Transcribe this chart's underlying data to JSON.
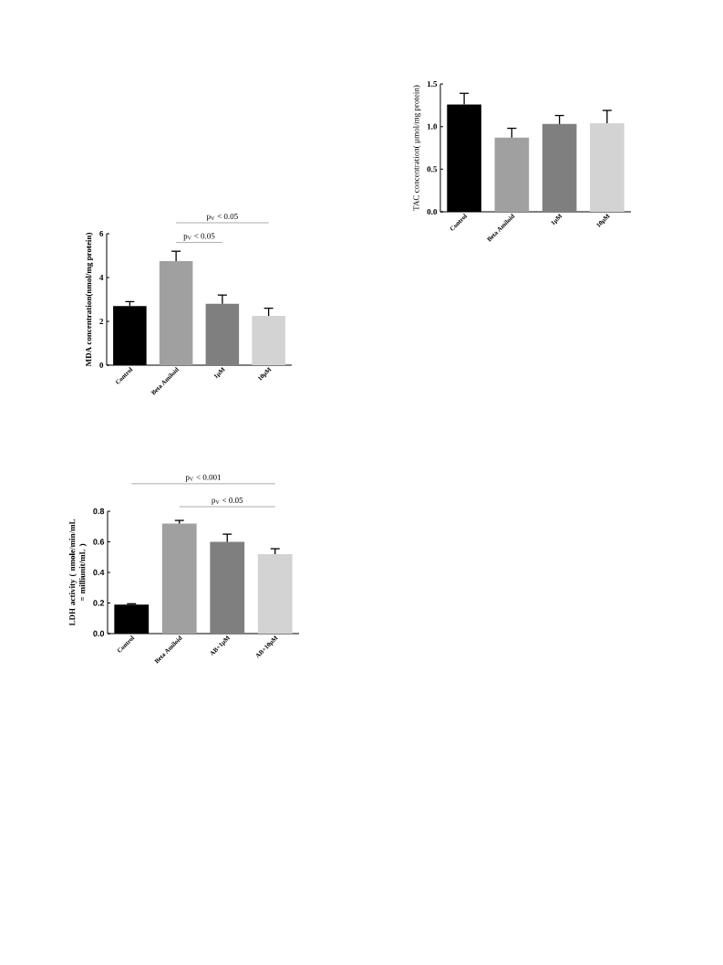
{
  "chart_data": [
    {
      "type": "bar",
      "categories": [
        "Control",
        "Beta Amiloid",
        "1µM",
        "10µM"
      ],
      "values": [
        1.26,
        0.87,
        1.03,
        1.04
      ],
      "errors": [
        0.13,
        0.11,
        0.1,
        0.15
      ],
      "colors": [
        "#000000",
        "#a0a0a0",
        "#7f7f7f",
        "#d3d3d3"
      ],
      "ylabel": "TAC concentration( µmol/mg  protein)",
      "ylim": [
        0,
        1.5
      ],
      "yticks": [
        {
          "value": 0,
          "label": "0.0"
        },
        {
          "value": 0.5,
          "label": "0.5"
        },
        {
          "value": 1,
          "label": "1.0"
        },
        {
          "value": 1.5,
          "label": "1.5"
        }
      ]
    },
    {
      "type": "bar",
      "categories": [
        "Control",
        "Beta Amiloid",
        "1µM",
        "10µM"
      ],
      "values": [
        2.7,
        4.75,
        2.8,
        2.25
      ],
      "errors": [
        0.2,
        0.45,
        0.4,
        0.35
      ],
      "colors": [
        "#000000",
        "#a0a0a0",
        "#7f7f7f",
        "#d3d3d3"
      ],
      "ylabel": "MDA concentration(nmol/mg protein)",
      "ylim": [
        0,
        6
      ],
      "yticks": [
        0,
        2,
        4,
        6
      ],
      "annotations": [
        "p$_{V}$ < 0.05",
        "p$_{V}$ < 0.05"
      ]
    },
    {
      "type": "bar",
      "categories": [
        "Control",
        "Beta Amiloid",
        "AB+1µM",
        "AB+10µM"
      ],
      "values": [
        0.19,
        0.72,
        0.6,
        0.52
      ],
      "errors": [
        0.005,
        0.02,
        0.05,
        0.035
      ],
      "colors": [
        "#000000",
        "#a0a0a0",
        "#7f7f7f",
        "#d3d3d3"
      ],
      "ylabel": "LDH activity ( nmole/min/mL = milliunit/mL )",
      "ylim": [
        0,
        0.8
      ],
      "yticks": [
        {
          "value": 0,
          "label": "0.0"
        },
        {
          "value": 0.2,
          "label": "0.2"
        },
        {
          "value": 0.4,
          "label": "0.4"
        },
        {
          "value": 0.6,
          "label": "0.6"
        },
        {
          "value": 0.8,
          "label": "0.8"
        }
      ],
      "annotations": [
        "p$_{V}$ < 0.001",
        "p$_{V}$ < 0.05"
      ]
    }
  ]
}
